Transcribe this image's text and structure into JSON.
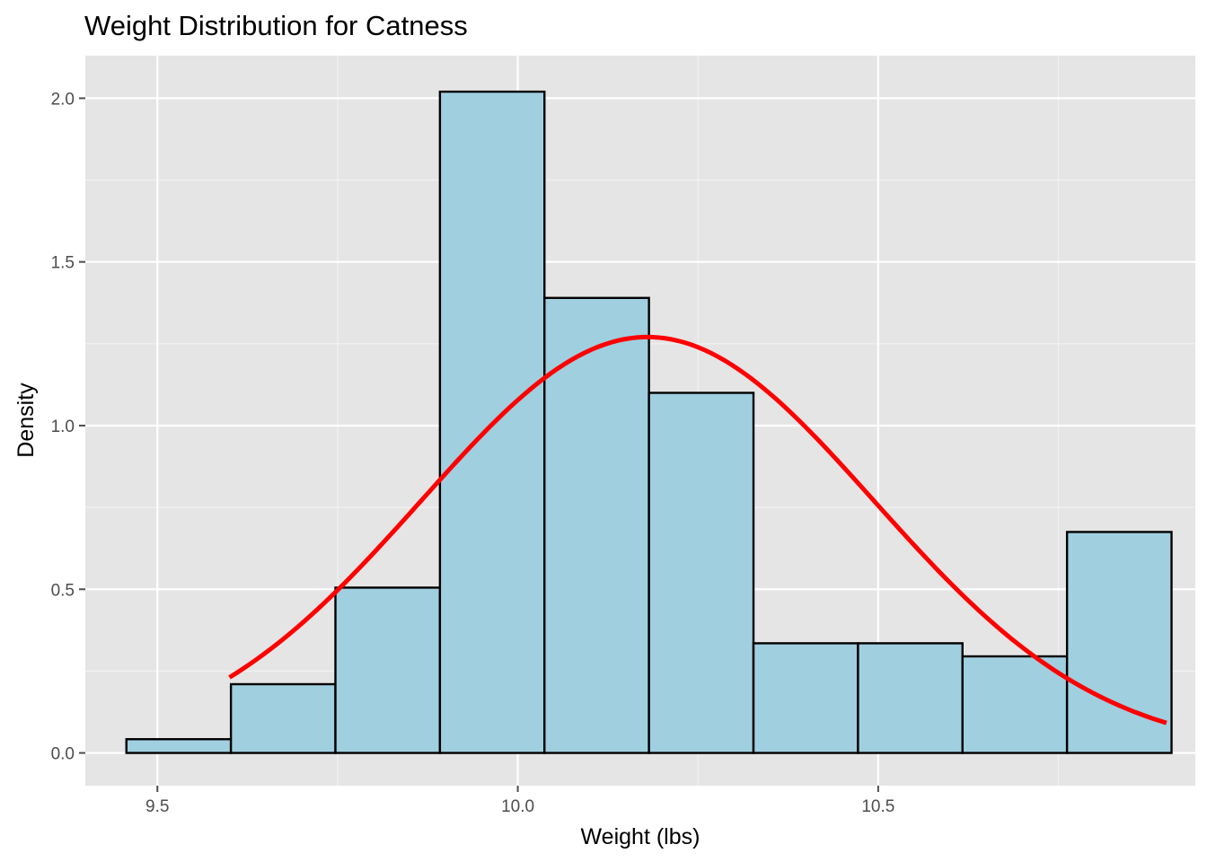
{
  "chart_data": {
    "type": "bar",
    "title": "Weight Distribution for Catness",
    "xlabel": "Weight (lbs)",
    "ylabel": "Density",
    "xlim": [
      9.4,
      10.94
    ],
    "ylim": [
      -0.1,
      2.13
    ],
    "x_ticks": [
      {
        "value": 9.5,
        "label": "9.5"
      },
      {
        "value": 10.0,
        "label": "10.0"
      },
      {
        "value": 10.5,
        "label": "10.5"
      }
    ],
    "y_ticks": [
      {
        "value": 0.0,
        "label": "0.0"
      },
      {
        "value": 0.5,
        "label": "0.5"
      },
      {
        "value": 1.0,
        "label": "1.0"
      },
      {
        "value": 1.5,
        "label": "1.5"
      },
      {
        "value": 2.0,
        "label": "2.0"
      }
    ],
    "bins": [
      {
        "x0": 9.457,
        "x1": 9.602,
        "density": 0.042
      },
      {
        "x0": 9.602,
        "x1": 9.747,
        "density": 0.21
      },
      {
        "x0": 9.747,
        "x1": 9.892,
        "density": 0.505
      },
      {
        "x0": 9.892,
        "x1": 10.037,
        "density": 2.02
      },
      {
        "x0": 10.037,
        "x1": 10.182,
        "density": 1.39
      },
      {
        "x0": 10.182,
        "x1": 10.327,
        "density": 1.1
      },
      {
        "x0": 10.327,
        "x1": 10.472,
        "density": 0.335
      },
      {
        "x0": 10.472,
        "x1": 10.617,
        "density": 0.335
      },
      {
        "x0": 10.617,
        "x1": 10.762,
        "density": 0.295
      },
      {
        "x0": 10.762,
        "x1": 10.907,
        "density": 0.675
      }
    ],
    "normal_curve": {
      "mean": 10.18,
      "sd": 0.314,
      "x_from": 9.6,
      "x_to": 10.9
    },
    "grid": true,
    "legend": "none",
    "colors": {
      "panel_background": "#e5e5e5",
      "grid_major": "#ffffff",
      "grid_minor": "#f2f2f2",
      "bar_fill": "#a0cfe0",
      "bar_border": "#000000",
      "curve": "#ff0000",
      "tick": "#4d4d4d"
    }
  }
}
